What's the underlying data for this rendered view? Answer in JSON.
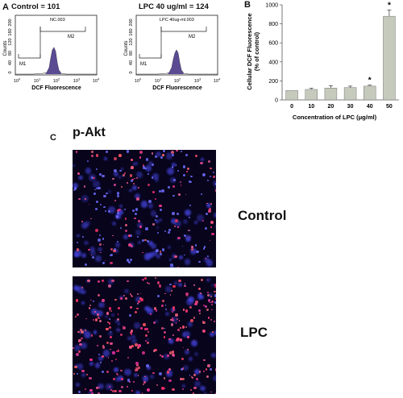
{
  "panel_a": {
    "letter": "A",
    "histograms": [
      {
        "header": "Control = 101",
        "sample_label": "NC.003",
        "ylabel": "Counts",
        "yticks": [
          "0",
          "40",
          "80",
          "120",
          "160",
          "200"
        ],
        "xlabel": "DCF Fluorescence",
        "xticks": [
          {
            "base": "10",
            "exp": "0"
          },
          {
            "base": "10",
            "exp": "1"
          },
          {
            "base": "10",
            "exp": "2"
          },
          {
            "base": "10",
            "exp": "3"
          },
          {
            "base": "10",
            "exp": "4"
          }
        ],
        "gate_m1": "M1",
        "gate_m2": "M2",
        "peak_log10": 2.2
      },
      {
        "header": "LPC 40 ug/ml = 124",
        "sample_label": "LPC 40ug-ml.003",
        "ylabel": "Counts",
        "yticks": [
          "0",
          "40",
          "80",
          "120",
          "160",
          "200"
        ],
        "xlabel": "DCF Fluorescence",
        "xticks": [
          {
            "base": "10",
            "exp": "0"
          },
          {
            "base": "10",
            "exp": "1"
          },
          {
            "base": "10",
            "exp": "2"
          },
          {
            "base": "10",
            "exp": "3"
          },
          {
            "base": "10",
            "exp": "4"
          }
        ],
        "gate_m1": "M1",
        "gate_m2": "M2",
        "peak_log10": 2.3
      }
    ]
  },
  "panel_b": {
    "letter": "B",
    "ylabel_line1": "Cellular DCF Fluorescence",
    "ylabel_line2": "(% of control)",
    "xlabel": "Concentration of LPC (μg/ml)"
  },
  "chart_data": {
    "type": "bar",
    "categories": [
      "0",
      "10",
      "20",
      "30",
      "40",
      "50"
    ],
    "values": [
      100,
      110,
      125,
      130,
      145,
      880
    ],
    "errors": [
      0,
      12,
      25,
      15,
      10,
      65
    ],
    "significance": [
      "",
      "",
      "",
      "",
      "*",
      "*"
    ],
    "yticks": [
      0,
      200,
      400,
      600,
      800,
      1000
    ],
    "ylim": [
      0,
      1000
    ],
    "bar_color": "#c5cabd"
  },
  "panel_c": {
    "letter": "C",
    "title": "p-Akt",
    "label_control": "Control",
    "label_lpc": "LPC"
  }
}
